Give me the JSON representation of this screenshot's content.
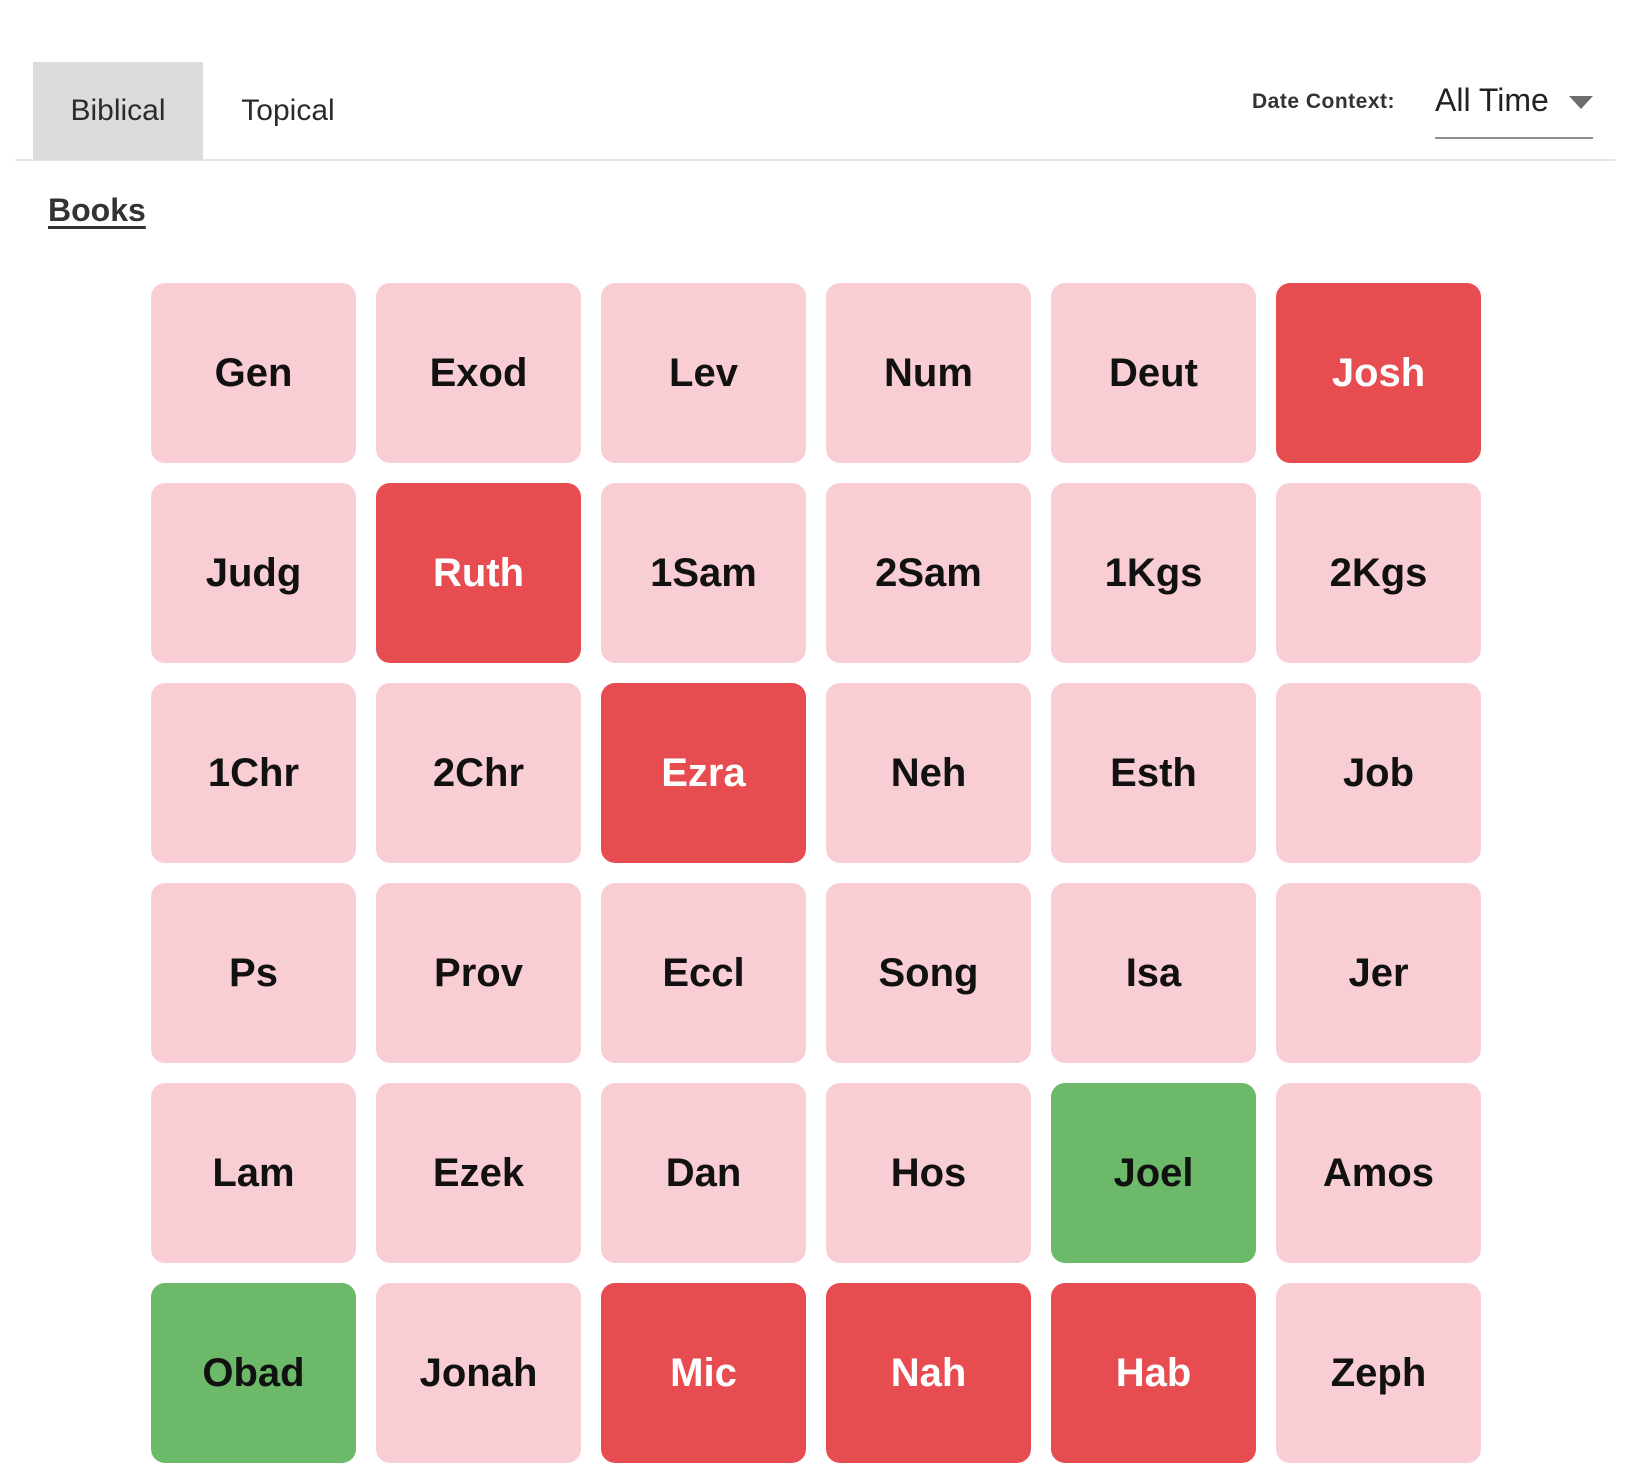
{
  "tabs": [
    {
      "label": "Biblical",
      "active": true
    },
    {
      "label": "Topical",
      "active": false
    }
  ],
  "date_context": {
    "label": "Date Context:",
    "value": "All Time"
  },
  "section": {
    "heading": "Books"
  },
  "colors": {
    "pink": "#F9CDD4",
    "red": "#E74C50",
    "green": "#6CB96A",
    "text_dark": "#111111",
    "text_on_red": "#FFFFFF",
    "tab_active_bg": "#DCDCDC",
    "divider": "#E4E4E4",
    "select_underline": "#8D8D8D"
  },
  "books": [
    {
      "label": "Gen",
      "level": "pink"
    },
    {
      "label": "Exod",
      "level": "pink"
    },
    {
      "label": "Lev",
      "level": "pink"
    },
    {
      "label": "Num",
      "level": "pink"
    },
    {
      "label": "Deut",
      "level": "pink"
    },
    {
      "label": "Josh",
      "level": "red"
    },
    {
      "label": "Judg",
      "level": "pink"
    },
    {
      "label": "Ruth",
      "level": "red"
    },
    {
      "label": "1Sam",
      "level": "pink"
    },
    {
      "label": "2Sam",
      "level": "pink"
    },
    {
      "label": "1Kgs",
      "level": "pink"
    },
    {
      "label": "2Kgs",
      "level": "pink"
    },
    {
      "label": "1Chr",
      "level": "pink"
    },
    {
      "label": "2Chr",
      "level": "pink"
    },
    {
      "label": "Ezra",
      "level": "red"
    },
    {
      "label": "Neh",
      "level": "pink"
    },
    {
      "label": "Esth",
      "level": "pink"
    },
    {
      "label": "Job",
      "level": "pink"
    },
    {
      "label": "Ps",
      "level": "pink"
    },
    {
      "label": "Prov",
      "level": "pink"
    },
    {
      "label": "Eccl",
      "level": "pink"
    },
    {
      "label": "Song",
      "level": "pink"
    },
    {
      "label": "Isa",
      "level": "pink"
    },
    {
      "label": "Jer",
      "level": "pink"
    },
    {
      "label": "Lam",
      "level": "pink"
    },
    {
      "label": "Ezek",
      "level": "pink"
    },
    {
      "label": "Dan",
      "level": "pink"
    },
    {
      "label": "Hos",
      "level": "pink"
    },
    {
      "label": "Joel",
      "level": "green"
    },
    {
      "label": "Amos",
      "level": "pink"
    },
    {
      "label": "Obad",
      "level": "green"
    },
    {
      "label": "Jonah",
      "level": "pink"
    },
    {
      "label": "Mic",
      "level": "red"
    },
    {
      "label": "Nah",
      "level": "red"
    },
    {
      "label": "Hab",
      "level": "red"
    },
    {
      "label": "Zeph",
      "level": "pink"
    }
  ]
}
